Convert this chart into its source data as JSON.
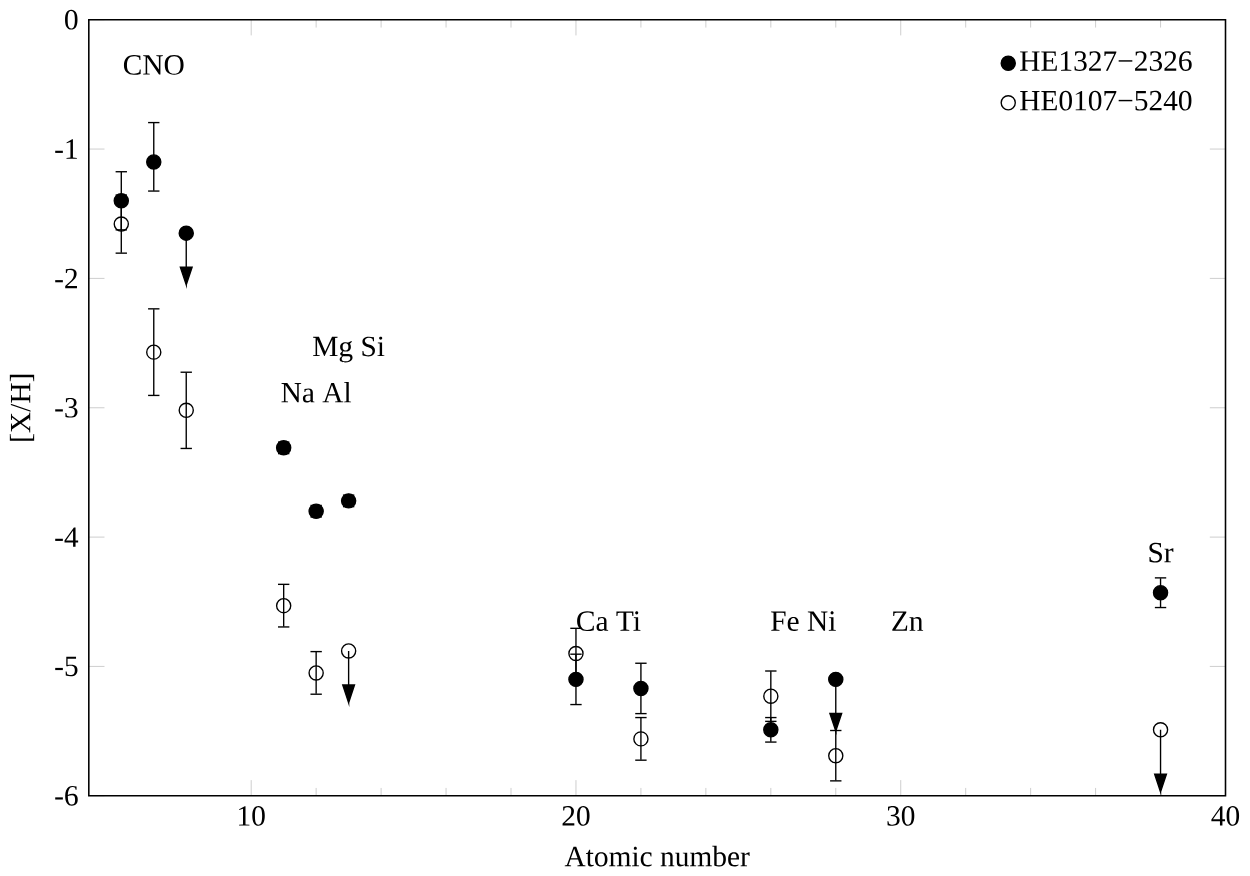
{
  "chart_data": {
    "type": "scatter",
    "xlabel": "Atomic number",
    "ylabel": "[X/H]",
    "xlim": [
      5,
      40
    ],
    "ylim": [
      -6,
      0
    ],
    "xticks": [
      10,
      20,
      30,
      40
    ],
    "yticks": [
      -6,
      -5,
      -4,
      -3,
      -2,
      -1,
      0
    ],
    "legend": "top right",
    "marker": "circle",
    "grid": false,
    "series": [
      {
        "name": "HE1327−2326",
        "color": "#000000",
        "x": [
          6,
          7,
          8,
          11,
          12,
          13,
          20,
          22,
          26,
          28,
          38
        ],
        "values": [
          -1.4,
          -1.1,
          -1.65,
          -3.31,
          -3.8,
          -3.72,
          -5.1,
          -5.17,
          -5.49,
          -5.1,
          -4.43
        ],
        "errors": [
          0.23,
          [
            -1.33,
            -0.79
          ],
          [
            -2.05,
            -1.65
          ],
          0.05,
          0.05,
          0.05,
          0.2,
          0.2,
          0.1,
          [
            -5.5,
            -5.1
          ],
          0.12
        ]
      },
      {
        "name": "HE0107−5240",
        "color": "#000000",
        "x": [
          6,
          7,
          8,
          11,
          12,
          13,
          20,
          22,
          26,
          28,
          38
        ],
        "values": [
          -1.58,
          -2.57,
          -3.02,
          -4.53,
          -5.05,
          -4.88,
          -4.9,
          -5.56,
          -5.23,
          -5.69,
          -5.49
        ],
        "errors": [
          0.23,
          0.34,
          0.3,
          0.17,
          0.17,
          [
            -5.28,
            -4.88
          ],
          0.2,
          0.17,
          0.2,
          0.2,
          [
            -5.97,
            -5.49
          ]
        ]
      }
    ],
    "annotations": [
      "CNO",
      "Mg Si",
      "Na Al",
      "Ca Ti",
      "Fe Ni",
      "Zn",
      "Sr"
    ]
  }
}
